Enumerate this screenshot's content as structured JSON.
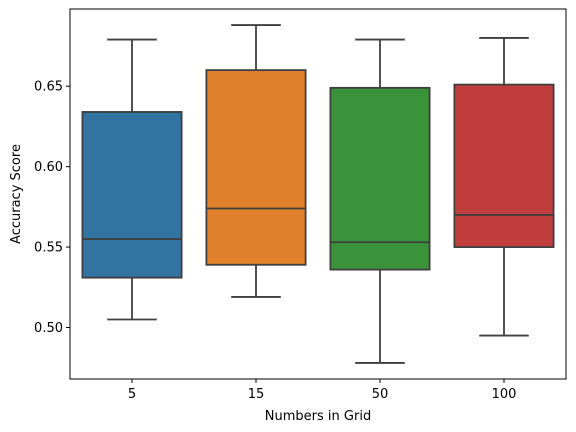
{
  "chart_data": {
    "type": "box",
    "title": "",
    "xlabel": "Numbers in Grid",
    "ylabel": "Accuracy Score",
    "categories": [
      "5",
      "15",
      "50",
      "100"
    ],
    "ylim": [
      0.468,
      0.698
    ],
    "yticks": [
      0.5,
      0.55,
      0.6,
      0.65
    ],
    "ytick_labels": [
      "0.50",
      "0.55",
      "0.60",
      "0.65"
    ],
    "grid": false,
    "legend": "none",
    "boxes": [
      {
        "category": "5",
        "whisker_low": 0.505,
        "q1": 0.531,
        "median": 0.555,
        "q3": 0.634,
        "whisker_high": 0.679,
        "color": "#3274a1"
      },
      {
        "category": "15",
        "whisker_low": 0.519,
        "q1": 0.539,
        "median": 0.574,
        "q3": 0.66,
        "whisker_high": 0.688,
        "color": "#e1812c"
      },
      {
        "category": "50",
        "whisker_low": 0.478,
        "q1": 0.536,
        "median": 0.553,
        "q3": 0.649,
        "whisker_high": 0.679,
        "color": "#3a923a"
      },
      {
        "category": "100",
        "whisker_low": 0.495,
        "q1": 0.55,
        "median": 0.57,
        "q3": 0.651,
        "whisker_high": 0.68,
        "color": "#c03d3e"
      }
    ]
  }
}
